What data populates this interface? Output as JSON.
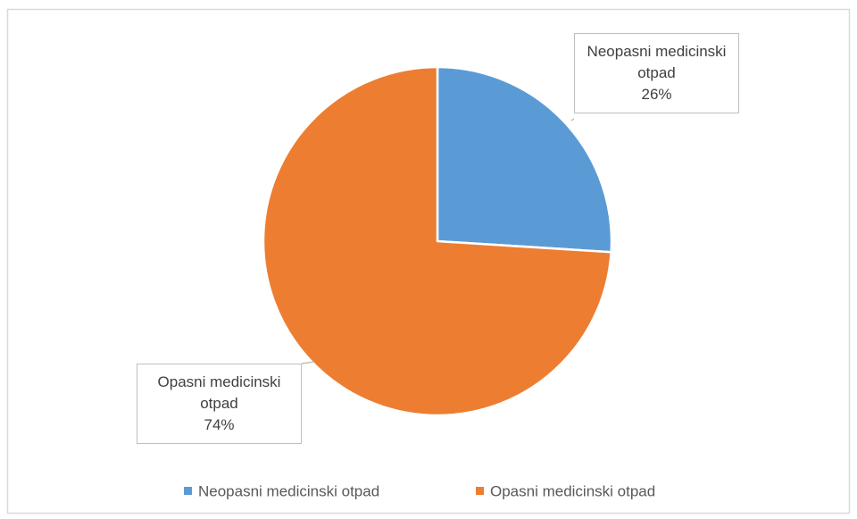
{
  "chart_data": {
    "type": "pie",
    "categories": [
      "Neopasni medicinski otpad",
      "Opasni medicinski otpad"
    ],
    "values": [
      26,
      74
    ],
    "value_labels": [
      "26%",
      "74%"
    ],
    "colors": [
      "#5b9bd5",
      "#ed7d31"
    ],
    "legend": "bottom"
  }
}
